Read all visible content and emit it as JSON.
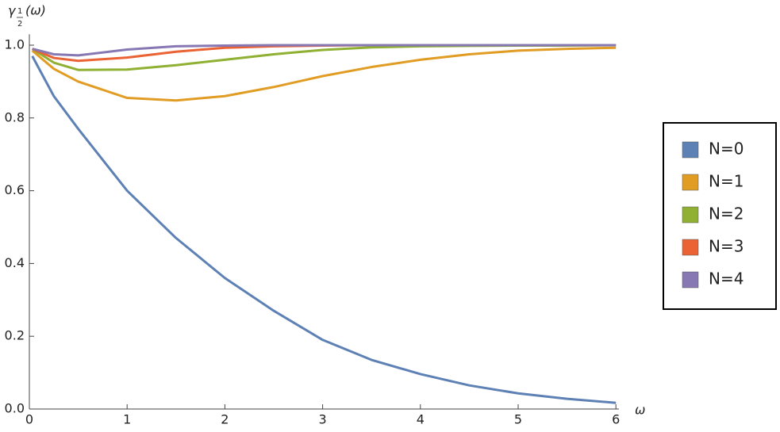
{
  "chart_data": {
    "type": "line",
    "x_label": "ω",
    "y_label": {
      "base": "γ",
      "sub_num": "1",
      "sub_den": "2",
      "arg": "(ω)"
    },
    "x": [
      0.03,
      0.25,
      0.5,
      1,
      1.5,
      2,
      2.5,
      3,
      3.5,
      4,
      4.5,
      5,
      5.5,
      6
    ],
    "series": [
      {
        "name": "N=0",
        "color": "#5e81b5",
        "values": [
          0.97,
          0.86,
          0.77,
          0.6,
          0.47,
          0.36,
          0.27,
          0.19,
          0.135,
          0.096,
          0.065,
          0.043,
          0.028,
          0.017
        ]
      },
      {
        "name": "N=1",
        "color": "#e19c24",
        "values": [
          0.985,
          0.935,
          0.9,
          0.855,
          0.848,
          0.86,
          0.885,
          0.915,
          0.94,
          0.96,
          0.975,
          0.985,
          0.99,
          0.993
        ]
      },
      {
        "name": "N=2",
        "color": "#8fb032",
        "values": [
          0.99,
          0.952,
          0.932,
          0.933,
          0.945,
          0.96,
          0.975,
          0.987,
          0.994,
          0.997,
          0.998,
          0.999,
          0.999,
          1.0
        ]
      },
      {
        "name": "N=3",
        "color": "#eb6235",
        "values": [
          0.99,
          0.965,
          0.957,
          0.966,
          0.982,
          0.993,
          0.997,
          0.999,
          1.0,
          1.0,
          1.0,
          1.0,
          1.0,
          1.0
        ]
      },
      {
        "name": "N=4",
        "color": "#8778b3",
        "values": [
          0.99,
          0.975,
          0.972,
          0.988,
          0.997,
          0.999,
          1.0,
          1.0,
          1.0,
          1.0,
          1.0,
          1.0,
          1.0,
          1.0
        ]
      }
    ],
    "xlim": [
      0,
      6.03
    ],
    "ylim": [
      0,
      1.03
    ],
    "xticks": [
      0,
      1,
      2,
      3,
      4,
      5,
      6
    ],
    "yticks": [
      {
        "value": 0,
        "label": "0.0"
      },
      0.2,
      0.4,
      0.6,
      0.8,
      {
        "value": 1,
        "label": "1.0"
      }
    ],
    "legend": "right",
    "grid": false
  }
}
